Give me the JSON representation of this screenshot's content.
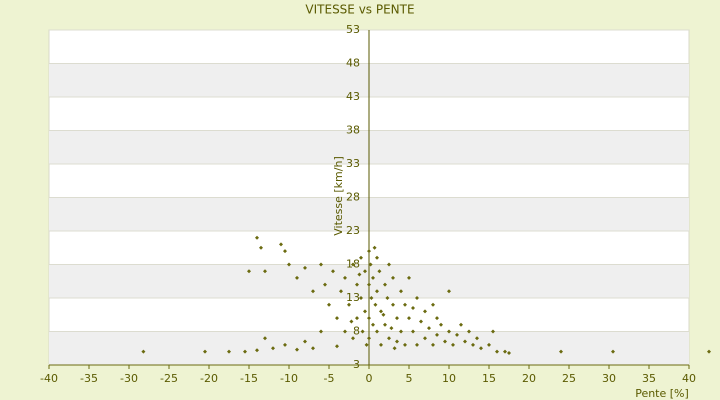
{
  "chart_data": {
    "type": "scatter",
    "title": "VITESSE vs PENTE",
    "x_label": "Pente [%]",
    "y_label": "Vitesse [km/h]",
    "color": "#6b6b10",
    "x": [
      -28.2,
      -17.5,
      -15.5,
      -14,
      -13,
      -12,
      -10.5,
      -9,
      -8,
      -7,
      -14,
      -13.5,
      -11,
      -10.5,
      -15,
      -13,
      -10,
      -9,
      -8,
      -7,
      -6,
      -5.5,
      -5,
      -4.5,
      -4,
      -3.5,
      -3,
      -3,
      -2.5,
      -2,
      -2,
      -1.5,
      -1.5,
      -1,
      -1,
      -0.8,
      -0.5,
      -0.5,
      -0.3,
      0,
      0,
      0,
      0,
      0.2,
      0.3,
      0.5,
      0.5,
      0.8,
      1,
      1,
      1,
      1.3,
      1.5,
      1.5,
      2,
      2,
      2.3,
      2.5,
      2.5,
      3,
      3,
      3.5,
      3.5,
      4,
      4,
      4.5,
      4.5,
      5,
      5,
      5.5,
      6,
      6,
      6.5,
      7,
      7,
      7.5,
      8,
      8,
      8.5,
      9,
      9.5,
      10,
      10,
      10.5,
      11,
      11.5,
      12,
      12.5,
      13,
      13.5,
      14,
      15,
      15.5,
      16,
      17,
      17.5,
      24,
      30.5,
      42.5,
      -20.5,
      1.8,
      2.8,
      -1.2,
      0.7,
      -2.2,
      5.5,
      8.5,
      3.2,
      -4,
      -6
    ],
    "values": [
      5,
      5,
      5,
      5.2,
      7,
      5.5,
      6,
      5.3,
      6.5,
      5.5,
      22,
      20.5,
      21,
      20,
      17,
      17,
      18,
      16,
      17.5,
      14,
      18,
      15,
      12,
      17,
      10,
      14,
      8,
      16,
      12,
      18,
      7,
      15,
      10,
      19,
      13,
      8,
      17,
      11,
      6,
      20,
      15,
      10,
      7,
      18,
      13,
      16,
      9,
      12,
      19,
      14,
      8,
      17,
      11,
      6,
      15,
      9,
      13,
      18,
      7,
      12,
      16,
      10,
      6.5,
      14,
      8,
      12,
      6,
      10,
      16,
      8,
      13,
      6,
      9.5,
      7,
      11,
      8.5,
      6,
      12,
      7.5,
      9,
      6.5,
      8,
      14,
      6,
      7.5,
      9,
      6.5,
      8,
      6,
      7,
      5.5,
      6,
      8,
      5,
      5,
      4.8,
      5,
      5,
      5,
      5,
      10.5,
      8.5,
      16.5,
      20.5,
      9.5,
      11.5,
      10,
      5.5,
      5.8,
      8
    ],
    "xlim": [
      -40,
      40
    ],
    "ylim": [
      3,
      53
    ],
    "xticks": [
      -40,
      -35,
      -30,
      -25,
      -20,
      -15,
      -10,
      -5,
      0,
      5,
      10,
      15,
      20,
      25,
      30,
      35,
      40
    ],
    "yticks": [
      3,
      8,
      13,
      18,
      23,
      28,
      33,
      38,
      43,
      48,
      53
    ],
    "grid": true
  }
}
